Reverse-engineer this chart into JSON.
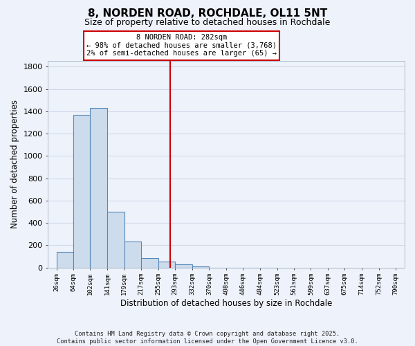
{
  "title": "8, NORDEN ROAD, ROCHDALE, OL11 5NT",
  "subtitle": "Size of property relative to detached houses in Rochdale",
  "xlabel": "Distribution of detached houses by size in Rochdale",
  "ylabel": "Number of detached properties",
  "bar_left_edges": [
    26,
    64,
    102,
    141,
    179,
    217,
    255,
    293,
    332,
    370,
    408,
    446,
    484
  ],
  "bar_widths": [
    38,
    38,
    39,
    38,
    38,
    38,
    38,
    39,
    38,
    38,
    38,
    38,
    38
  ],
  "bar_heights": [
    140,
    1370,
    1430,
    500,
    230,
    85,
    55,
    30,
    10,
    0,
    0,
    0,
    0
  ],
  "bar_color": "#cddcec",
  "bar_edgecolor": "#5588bb",
  "vline_x": 282,
  "vline_color": "#cc0000",
  "annotation_title": "8 NORDEN ROAD: 282sqm",
  "annotation_line1": "← 98% of detached houses are smaller (3,768)",
  "annotation_line2": "2% of semi-detached houses are larger (65) →",
  "annotation_box_facecolor": "#ffffff",
  "annotation_box_edgecolor": "#cc0000",
  "tick_labels": [
    "26sqm",
    "64sqm",
    "102sqm",
    "141sqm",
    "179sqm",
    "217sqm",
    "255sqm",
    "293sqm",
    "332sqm",
    "370sqm",
    "408sqm",
    "446sqm",
    "484sqm",
    "523sqm",
    "561sqm",
    "599sqm",
    "637sqm",
    "675sqm",
    "714sqm",
    "752sqm",
    "790sqm"
  ],
  "tick_positions": [
    26,
    64,
    102,
    141,
    179,
    217,
    255,
    293,
    332,
    370,
    408,
    446,
    484,
    523,
    561,
    599,
    637,
    675,
    714,
    752,
    790
  ],
  "ylim": [
    0,
    1850
  ],
  "xlim": [
    7,
    810
  ],
  "yticks": [
    0,
    200,
    400,
    600,
    800,
    1000,
    1200,
    1400,
    1600,
    1800
  ],
  "background_color": "#eef2fa",
  "grid_color": "#d0d8e8",
  "footnote1": "Contains HM Land Registry data © Crown copyright and database right 2025.",
  "footnote2": "Contains public sector information licensed under the Open Government Licence v3.0."
}
